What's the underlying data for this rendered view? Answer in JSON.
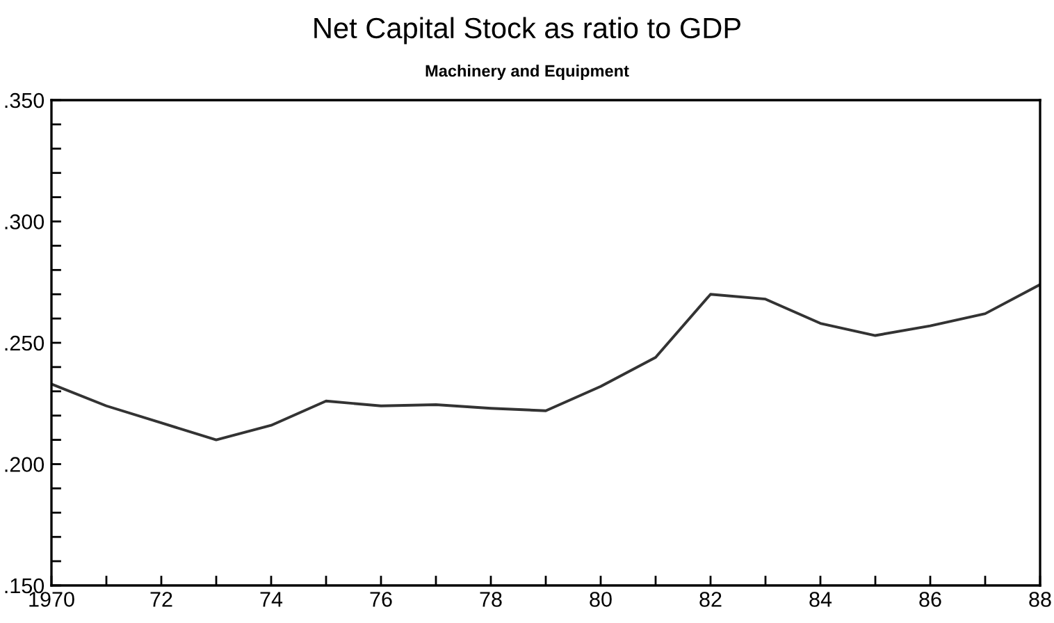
{
  "chart_data": {
    "type": "line",
    "title": "Net Capital Stock as ratio to GDP",
    "subtitle": "Machinery and Equipment",
    "x": [
      1970,
      1971,
      1972,
      1973,
      1974,
      1975,
      1976,
      1977,
      1978,
      1979,
      1980,
      1981,
      1982,
      1983,
      1984,
      1985,
      1986,
      1987,
      1988
    ],
    "series": [
      {
        "color": "#333333",
        "values": [
          0.233,
          0.224,
          0.217,
          0.21,
          0.216,
          0.226,
          0.224,
          0.2245,
          0.223,
          0.222,
          0.232,
          0.244,
          0.27,
          0.268,
          0.258,
          0.253,
          0.257,
          0.262,
          0.274
        ]
      }
    ],
    "xlim": [
      1970,
      1988
    ],
    "xticks": [
      {
        "value": 1970,
        "label": "1970"
      },
      {
        "value": 1971,
        "label": null
      },
      {
        "value": 1972,
        "label": "72"
      },
      {
        "value": 1973,
        "label": null
      },
      {
        "value": 1974,
        "label": "74"
      },
      {
        "value": 1975,
        "label": null
      },
      {
        "value": 1976,
        "label": "76"
      },
      {
        "value": 1977,
        "label": null
      },
      {
        "value": 1978,
        "label": "78"
      },
      {
        "value": 1979,
        "label": null
      },
      {
        "value": 1980,
        "label": "80"
      },
      {
        "value": 1981,
        "label": null
      },
      {
        "value": 1982,
        "label": "82"
      },
      {
        "value": 1983,
        "label": null
      },
      {
        "value": 1984,
        "label": "84"
      },
      {
        "value": 1985,
        "label": null
      },
      {
        "value": 1986,
        "label": "86"
      },
      {
        "value": 1987,
        "label": null
      },
      {
        "value": 1988,
        "label": "88"
      }
    ],
    "ylim": [
      0.15,
      0.35
    ],
    "yticks": [
      {
        "value": 0.15,
        "label": ".150"
      },
      {
        "value": 0.16,
        "label": null
      },
      {
        "value": 0.17,
        "label": null
      },
      {
        "value": 0.18,
        "label": null
      },
      {
        "value": 0.19,
        "label": null
      },
      {
        "value": 0.2,
        "label": ".200"
      },
      {
        "value": 0.21,
        "label": null
      },
      {
        "value": 0.22,
        "label": null
      },
      {
        "value": 0.23,
        "label": null
      },
      {
        "value": 0.24,
        "label": null
      },
      {
        "value": 0.25,
        "label": ".250"
      },
      {
        "value": 0.26,
        "label": null
      },
      {
        "value": 0.27,
        "label": null
      },
      {
        "value": 0.28,
        "label": null
      },
      {
        "value": 0.29,
        "label": null
      },
      {
        "value": 0.3,
        "label": ".300"
      },
      {
        "value": 0.31,
        "label": null
      },
      {
        "value": 0.32,
        "label": null
      },
      {
        "value": 0.33,
        "label": null
      },
      {
        "value": 0.34,
        "label": null
      },
      {
        "value": 0.35,
        "label": ".350"
      }
    ],
    "grid": false,
    "legend": false,
    "marker": "none",
    "line_style": "solid"
  }
}
